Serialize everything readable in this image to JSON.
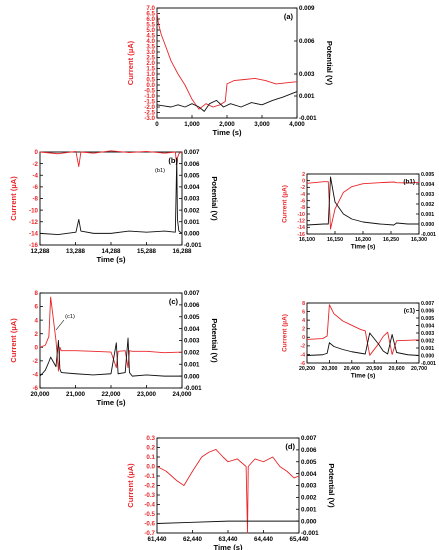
{
  "figure": {
    "colors": {
      "current": "#e8262a",
      "potential": "#111111",
      "axes": "#000000"
    }
  },
  "chart_data": [
    {
      "panel": "(a)",
      "type": "line",
      "xlabel": "Time (s)",
      "ylabel_left": "Current  (µA)",
      "ylabel_right": "Potential (V)",
      "xlim": [
        0,
        4000
      ],
      "ylim_left": [
        -3.0,
        7.0
      ],
      "ylim_right": [
        -0.001,
        0.009
      ],
      "xticks": [
        0,
        1000,
        2000,
        3000,
        4000
      ],
      "xticklabels": [
        "0",
        "1,000",
        "2,000",
        "3,000",
        "4,000"
      ],
      "yticks_left": [
        -3.0,
        -2.5,
        -2.0,
        -1.5,
        -1.0,
        -0.5,
        0.0,
        0.5,
        1.0,
        1.5,
        2.0,
        2.5,
        3.0,
        3.5,
        4.0,
        4.5,
        5.0,
        5.5,
        6.0,
        6.5,
        7.0
      ],
      "yticklabels_left": [
        "-3.0",
        "-2.5",
        "-2.0",
        "-1.5",
        "-1.0",
        "-0.5",
        "0.0",
        "0.5",
        "1.0",
        "1.5",
        "2.0",
        "2.5",
        "3.0",
        "3.5",
        "4.0",
        "4.5",
        "5.0",
        "5.5",
        "6.0",
        "6.5",
        "7.0"
      ],
      "yticks_right": [
        -0.001,
        0.001,
        0.003,
        0.006,
        0.009
      ],
      "yticklabels_right": [
        "-0.001",
        "0.001",
        "0.003",
        "0.006",
        "0.009"
      ],
      "series": [
        {
          "axis": "left",
          "color": "#e8262a",
          "x": [
            0,
            40,
            120,
            250,
            400,
            600,
            800,
            1000,
            1200,
            1400,
            1600,
            1800,
            1950,
            2000,
            2200,
            2500,
            2800,
            3100,
            3400,
            3700,
            4000
          ],
          "y": [
            6.6,
            5.6,
            4.6,
            3.5,
            2.2,
            1.0,
            0.0,
            -1.3,
            -2.2,
            -1.7,
            -2.0,
            -1.8,
            -1.5,
            0.1,
            0.4,
            0.5,
            0.6,
            0.4,
            0.1,
            0.2,
            0.3
          ]
        },
        {
          "axis": "right",
          "color": "#111111",
          "x": [
            0,
            200,
            400,
            600,
            800,
            1000,
            1200,
            1350,
            1500,
            1700,
            1900,
            2100,
            2400,
            2700,
            3000,
            3300,
            3600,
            4000
          ],
          "y": [
            0.0002,
            0.0001,
            0.0,
            0.0002,
            0.0,
            0.0003,
            0.0,
            -0.0004,
            0.0003,
            0.0006,
            0.0,
            0.0003,
            0.0,
            0.0004,
            0.0002,
            0.0006,
            0.0009,
            0.0014
          ]
        }
      ]
    },
    {
      "panel": "(b)",
      "type": "line",
      "xlabel": "Time (s)",
      "ylabel_left": "Current  (µA)",
      "ylabel_right": "Potential (V)",
      "xlim": [
        12288,
        16288
      ],
      "ylim_left": [
        -16,
        0
      ],
      "ylim_right": [
        -0.001,
        0.007
      ],
      "xticks": [
        12288,
        13288,
        14288,
        15288,
        16288
      ],
      "xticklabels": [
        "12,288",
        "13,288",
        "14,288",
        "15,288",
        "16,288"
      ],
      "yticks_left": [
        -16,
        -14,
        -12,
        -10,
        -8,
        -6,
        -4,
        -2,
        0
      ],
      "yticklabels_left": [
        "-16",
        "-14",
        "-12",
        "-10",
        "-8",
        "-6",
        "-4",
        "-2",
        "0"
      ],
      "yticks_right": [
        -0.001,
        0.0,
        0.001,
        0.002,
        0.003,
        0.004,
        0.005,
        0.006,
        0.007
      ],
      "yticklabels_right": [
        "-0.001",
        "0.000",
        "0.001",
        "0.002",
        "0.003",
        "0.004",
        "0.005",
        "0.006",
        "0.007"
      ],
      "annotation": "(b1)",
      "series": [
        {
          "axis": "left",
          "color": "#e8262a",
          "x": [
            12288,
            12800,
            13300,
            13380,
            13440,
            13800,
            14288,
            14800,
            15288,
            15800,
            16100,
            16140,
            16160,
            16200,
            16288
          ],
          "y": [
            0.0,
            -0.3,
            0.1,
            -2.5,
            0.0,
            -0.2,
            0.2,
            -0.1,
            0.1,
            -0.2,
            0.0,
            -2.2,
            -1.0,
            -0.3,
            0.1
          ]
        },
        {
          "axis": "right",
          "color": "#111111",
          "x": [
            12288,
            12800,
            13300,
            13380,
            13440,
            13800,
            14288,
            14800,
            15288,
            15800,
            16100,
            16140,
            16160,
            16200,
            16288
          ],
          "y": [
            0.0,
            -0.0001,
            0.0001,
            0.0012,
            0.0002,
            0.0,
            0.0,
            0.0002,
            0.0001,
            0.0002,
            0.0001,
            0.0064,
            0.0012,
            0.0002,
            0.0
          ]
        }
      ]
    },
    {
      "panel": "(b1)",
      "type": "line",
      "xlabel": "Time (s)",
      "ylabel_left": "Current  (µA)",
      "ylabel_right": "Potential (V)",
      "xlim": [
        16100,
        16300
      ],
      "ylim_left": [
        -16,
        2
      ],
      "ylim_right": [
        -0.001,
        0.005
      ],
      "xticks": [
        16100,
        16150,
        16200,
        16250,
        16300
      ],
      "xticklabels": [
        "16,100",
        "16,150",
        "16,200",
        "16,250",
        "16,300"
      ],
      "yticks_left": [
        -16,
        -14,
        -12,
        -10,
        -8,
        -6,
        -4,
        -2,
        0,
        2
      ],
      "yticklabels_left": [
        "-16",
        "-14",
        "-12",
        "-10",
        "-8",
        "-6",
        "-4",
        "-2",
        "0",
        "2"
      ],
      "yticks_right": [
        -0.001,
        0.0,
        0.001,
        0.002,
        0.003,
        0.004,
        0.005
      ],
      "yticklabels_right": [
        "-0.001",
        "0.000",
        "0.001",
        "0.002",
        "0.003",
        "0.004",
        "0.005"
      ],
      "annotation": "(b1)",
      "series": [
        {
          "axis": "left",
          "color": "#e8262a",
          "x": [
            16100,
            16130,
            16138,
            16142,
            16150,
            16165,
            16180,
            16200,
            16230,
            16255,
            16260,
            16280,
            16300
          ],
          "y": [
            -0.8,
            -0.3,
            -0.3,
            -14.5,
            -8.5,
            -3.5,
            -1.8,
            -0.9,
            -0.6,
            -0.4,
            -0.6,
            -0.7,
            -0.5
          ]
        },
        {
          "axis": "right",
          "color": "#111111",
          "x": [
            16100,
            16130,
            16138,
            16142,
            16150,
            16165,
            16180,
            16200,
            16230,
            16255,
            16260,
            16280,
            16300
          ],
          "y": [
            -0.0001,
            0.0,
            0.0,
            0.0047,
            0.0022,
            0.001,
            0.0005,
            0.0002,
            0.0,
            -0.0001,
            0.0001,
            0.0,
            0.0
          ]
        }
      ]
    },
    {
      "panel": "(c)",
      "type": "line",
      "xlabel": "Time (s)",
      "ylabel_left": "Current  (µA)",
      "ylabel_right": "Potential (V)",
      "xlim": [
        20000,
        24000
      ],
      "ylim_left": [
        -6,
        8
      ],
      "ylim_right": [
        -0.001,
        0.007
      ],
      "xticks": [
        20000,
        21000,
        22000,
        23000,
        24000
      ],
      "xticklabels": [
        "20,000",
        "21,000",
        "22,000",
        "23,000",
        "24,000"
      ],
      "yticks_left": [
        -6,
        -4,
        -2,
        0,
        2,
        4,
        6,
        8
      ],
      "yticklabels_left": [
        "-6",
        "-4",
        "-2",
        "0",
        "2",
        "4",
        "6",
        "8"
      ],
      "yticks_right": [
        -0.001,
        0.0,
        0.001,
        0.002,
        0.003,
        0.004,
        0.005,
        0.006,
        0.007
      ],
      "yticklabels_right": [
        "-0.001",
        "0.000",
        "0.001",
        "0.002",
        "0.003",
        "0.004",
        "0.005",
        "0.006",
        "0.007"
      ],
      "annotation": "(c1)",
      "series": [
        {
          "axis": "left",
          "color": "#e8262a",
          "x": [
            20000,
            20150,
            20250,
            20300,
            20450,
            20520,
            20560,
            20600,
            21000,
            21500,
            22000,
            22150,
            22200,
            22400,
            22480,
            22520,
            22600,
            23000,
            23500,
            24000
          ],
          "y": [
            0.0,
            0.3,
            1.6,
            7.4,
            1.0,
            -3.5,
            0.0,
            -0.5,
            -0.5,
            -0.6,
            -0.7,
            -3.0,
            -0.6,
            -0.5,
            -3.0,
            -0.5,
            -0.6,
            -0.6,
            -0.8,
            -0.7
          ]
        },
        {
          "axis": "right",
          "color": "#111111",
          "x": [
            20000,
            20150,
            20250,
            20300,
            20450,
            20520,
            20560,
            20600,
            21000,
            21500,
            22000,
            22150,
            22200,
            22400,
            22480,
            22520,
            22600,
            23000,
            23500,
            24000
          ],
          "y": [
            0.0,
            0.0005,
            0.0012,
            0.0016,
            0.0008,
            0.003,
            0.0006,
            0.0003,
            0.0002,
            0.0001,
            0.0002,
            0.0028,
            0.0002,
            0.0003,
            0.0032,
            0.0003,
            0.0,
            0.0001,
            0.0,
            0.0
          ]
        }
      ]
    },
    {
      "panel": "(c1)",
      "type": "line",
      "xlabel": "Time (s)",
      "ylabel_left": "Current  (µA)",
      "ylabel_right": "Potential (V)",
      "xlim": [
        20200,
        20700
      ],
      "ylim_left": [
        -6,
        8
      ],
      "ylim_right": [
        -0.001,
        0.007
      ],
      "xticks": [
        20200,
        20300,
        20400,
        20500,
        20600,
        20700
      ],
      "xticklabels": [
        "20,200",
        "20,300",
        "20,400",
        "20,500",
        "20,600",
        "20,700"
      ],
      "yticks_left": [
        -6,
        -4,
        -2,
        0,
        2,
        4,
        6,
        8
      ],
      "yticklabels_left": [
        "-6",
        "-4",
        "-2",
        "0",
        "2",
        "4",
        "6",
        "8"
      ],
      "yticks_right": [
        -0.001,
        0.0,
        0.001,
        0.002,
        0.003,
        0.004,
        0.005,
        0.006,
        0.007
      ],
      "yticklabels_right": [
        "-0.001",
        "0.000",
        "0.001",
        "0.002",
        "0.003",
        "0.004",
        "0.005",
        "0.006",
        "0.007"
      ],
      "annotation": "(c1)",
      "series": [
        {
          "axis": "left",
          "color": "#e8262a",
          "x": [
            20200,
            20270,
            20290,
            20300,
            20320,
            20360,
            20400,
            20440,
            20460,
            20480,
            20520,
            20540,
            20560,
            20580,
            20600,
            20650,
            20700
          ],
          "y": [
            -0.5,
            -0.3,
            0.3,
            7.6,
            5.5,
            3.8,
            2.8,
            1.8,
            1.5,
            -4.2,
            -1.5,
            0.2,
            1.2,
            -4.0,
            -0.8,
            -0.7,
            -0.6
          ]
        },
        {
          "axis": "right",
          "color": "#111111",
          "x": [
            20200,
            20270,
            20290,
            20300,
            20320,
            20360,
            20400,
            20440,
            20460,
            20480,
            20520,
            20540,
            20560,
            20580,
            20600,
            20650,
            20700
          ],
          "y": [
            0.0,
            0.0001,
            0.0003,
            0.0017,
            0.0012,
            0.0008,
            0.0005,
            0.0003,
            0.0002,
            0.003,
            0.0015,
            0.0006,
            0.0002,
            0.0028,
            0.0004,
            0.0001,
            0.0
          ]
        }
      ]
    },
    {
      "panel": "(d)",
      "type": "line",
      "xlabel": "Time (s)",
      "ylabel_left": "Current  (µA)",
      "ylabel_right": "Potential (V)",
      "xlim": [
        61440,
        65440
      ],
      "ylim_left": [
        -0.7,
        0.3
      ],
      "ylim_right": [
        -0.001,
        0.007
      ],
      "xticks": [
        61440,
        62440,
        63440,
        64440,
        65440
      ],
      "xticklabels": [
        "61,440",
        "62,440",
        "63,440",
        "64,440",
        "65,440"
      ],
      "yticks_left": [
        -0.7,
        -0.6,
        -0.5,
        -0.4,
        -0.3,
        -0.2,
        -0.1,
        0.0,
        0.1,
        0.2,
        0.3
      ],
      "yticklabels_left": [
        "-0.7",
        "-0.6",
        "-0.5",
        "-0.4",
        "-0.3",
        "-0.2",
        "-0.1",
        "0.0",
        "0.1",
        "0.2",
        "0.3"
      ],
      "yticks_right": [
        -0.001,
        0.0,
        0.001,
        0.002,
        0.003,
        0.004,
        0.005,
        0.006,
        0.007
      ],
      "yticklabels_right": [
        "-0.001",
        "0.000",
        "0.001",
        "0.002",
        "0.003",
        "0.004",
        "0.005",
        "0.006",
        "0.007"
      ],
      "series": [
        {
          "axis": "left",
          "color": "#e8262a",
          "x": [
            61440,
            61700,
            62000,
            62200,
            62440,
            62700,
            62900,
            63100,
            63300,
            63440,
            63700,
            63950,
            63990,
            64010,
            64200,
            64440,
            64700,
            64900,
            65100,
            65300,
            65440
          ],
          "y": [
            0.0,
            -0.05,
            -0.15,
            -0.2,
            -0.05,
            0.1,
            0.15,
            0.18,
            0.1,
            0.05,
            0.08,
            0.0,
            -0.7,
            0.0,
            0.08,
            0.05,
            0.1,
            0.0,
            -0.05,
            -0.12,
            -0.1
          ]
        },
        {
          "axis": "right",
          "color": "#111111",
          "x": [
            61440,
            62440,
            63440,
            64440,
            65440
          ],
          "y": [
            -0.0002,
            -0.0001,
            0.0,
            0.0,
            0.0
          ]
        }
      ]
    }
  ]
}
